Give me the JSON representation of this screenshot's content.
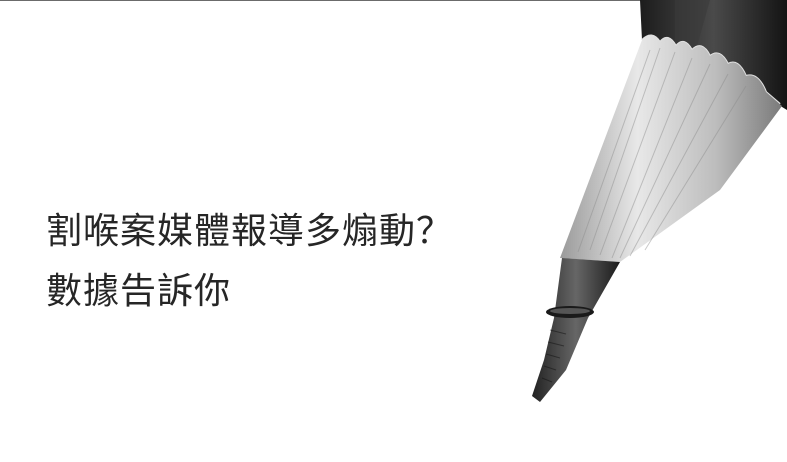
{
  "headline": {
    "line1": "割喉案媒體報導多煽動？",
    "line2": "數據告訴你"
  },
  "illustration": {
    "icon": "pencil-illustration",
    "style": "grayscale"
  },
  "colors": {
    "background": "#ffffff",
    "text": "#262626",
    "top_rule": "#6b6b6b"
  }
}
